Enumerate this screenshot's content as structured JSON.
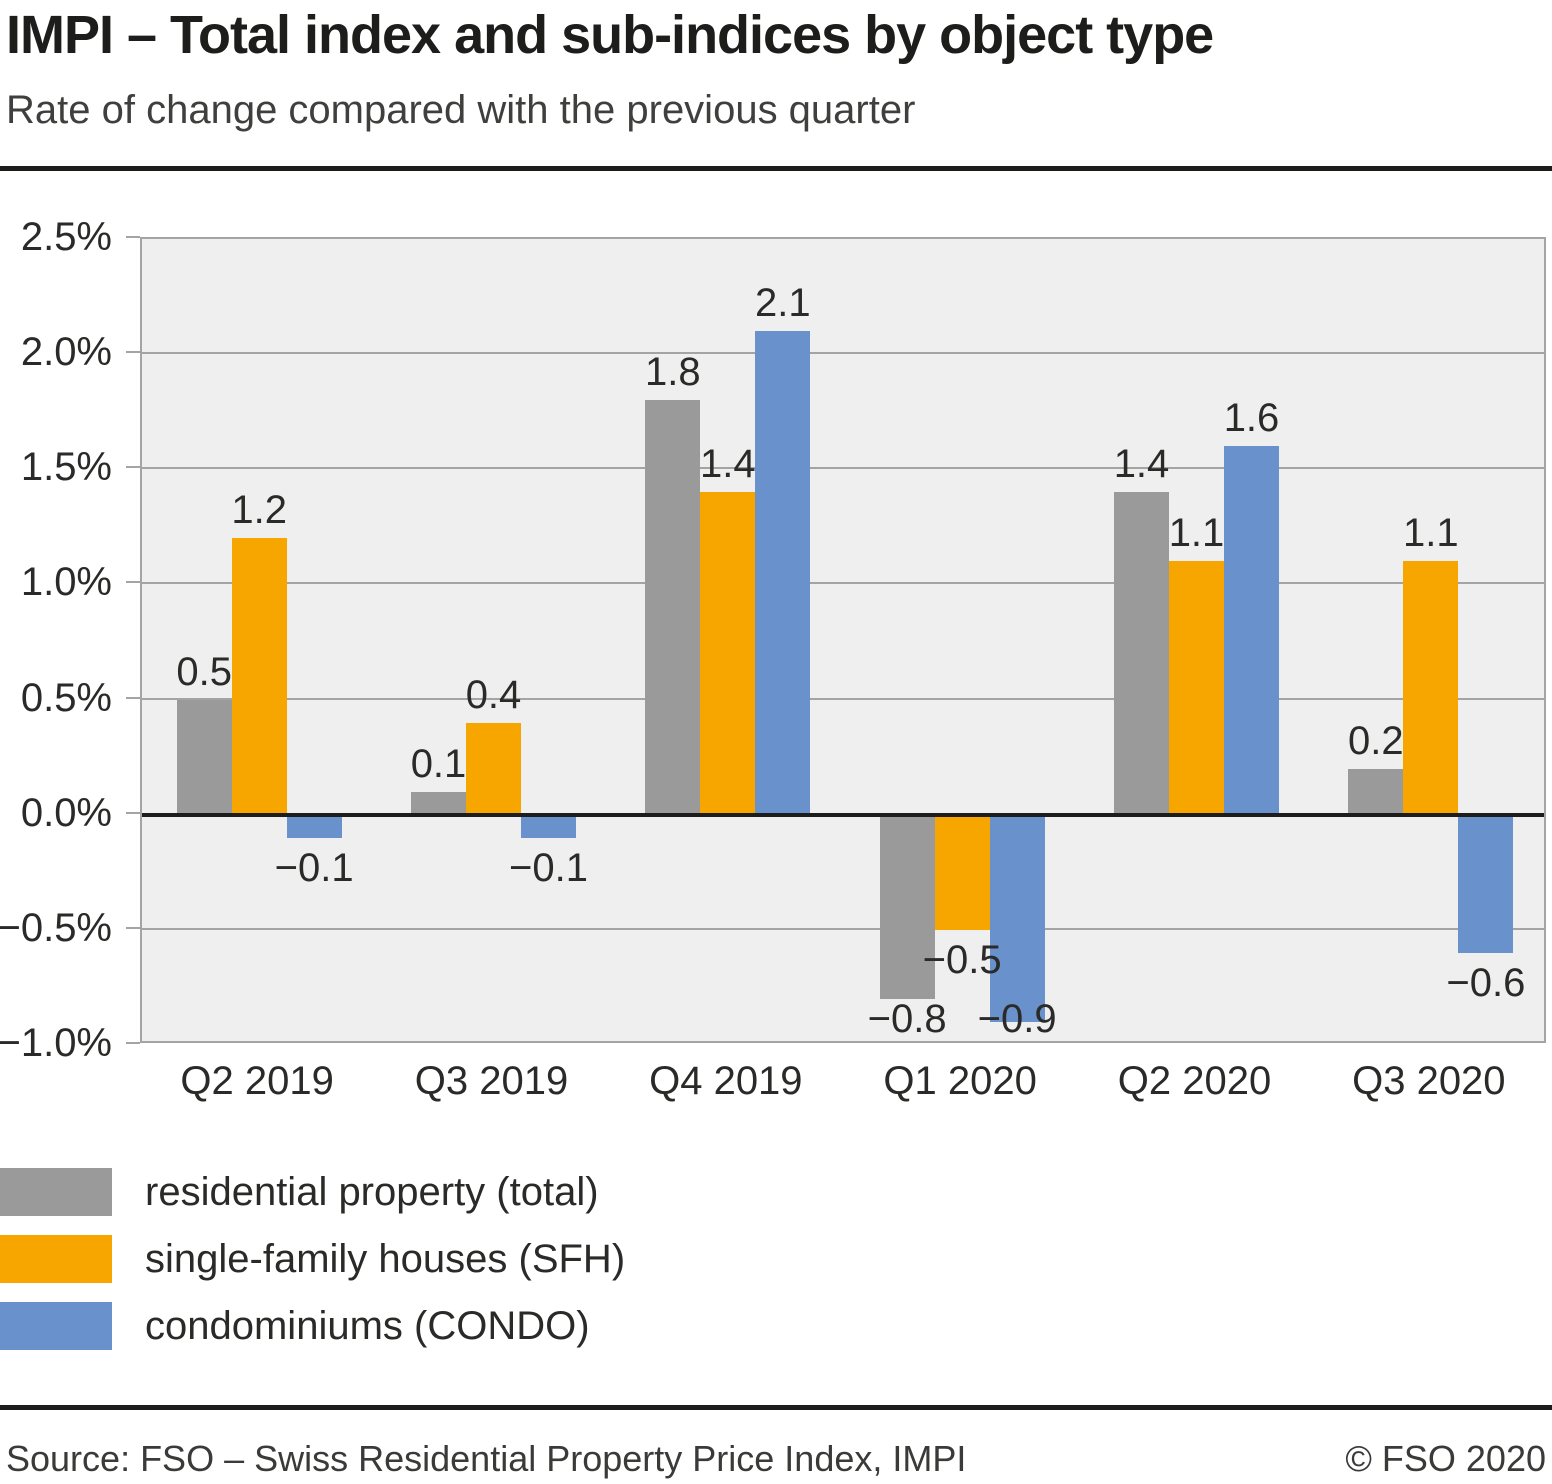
{
  "header": {
    "title": "IMPI – Total index and sub-indices by object type",
    "subtitle": "Rate of change compared with the previous quarter"
  },
  "footer": {
    "source": "Source: FSO – Swiss Residential Property Price Index, IMPI",
    "copyright": "© FSO 2020"
  },
  "colors": {
    "gray": "#9a9a9a",
    "orange": "#f7a600",
    "blue": "#6991cb",
    "plot_bg": "#f0efef",
    "grid": "#a4a4a4",
    "zero_line": "#1d1d1b",
    "text": "#2a2a28"
  },
  "chart_data": {
    "type": "bar",
    "title": "IMPI – Total index and sub-indices by object type",
    "subtitle": "Rate of change compared with the previous quarter",
    "categories": [
      "Q2 2019",
      "Q3 2019",
      "Q4 2019",
      "Q1 2020",
      "Q2 2020",
      "Q3 2020"
    ],
    "series": [
      {
        "name": "residential property (total)",
        "color_key": "gray",
        "values": [
          0.5,
          0.1,
          1.8,
          -0.8,
          1.4,
          0.2
        ]
      },
      {
        "name": "single-family houses (SFH)",
        "color_key": "orange",
        "values": [
          1.2,
          0.4,
          1.4,
          -0.5,
          1.1,
          1.1
        ]
      },
      {
        "name": "condominiums (CONDO)",
        "color_key": "blue",
        "values": [
          -0.1,
          -0.1,
          2.1,
          -0.9,
          1.6,
          -0.6
        ]
      }
    ],
    "yticks": [
      {
        "label": "2.5%",
        "value": 2.5
      },
      {
        "label": "2.0%",
        "value": 2.0
      },
      {
        "label": "1.5%",
        "value": 1.5
      },
      {
        "label": "1.0%",
        "value": 1.0
      },
      {
        "label": "0.5%",
        "value": 0.5
      },
      {
        "label": "0.0%",
        "value": 0.0
      },
      {
        "label": "−0.5%",
        "value": -0.5
      },
      {
        "label": "−1.0%",
        "value": -1.0
      }
    ],
    "ylim": [
      -1.0,
      2.5
    ],
    "grid": true,
    "value_labels": true,
    "legend_position": "bottom-left"
  }
}
